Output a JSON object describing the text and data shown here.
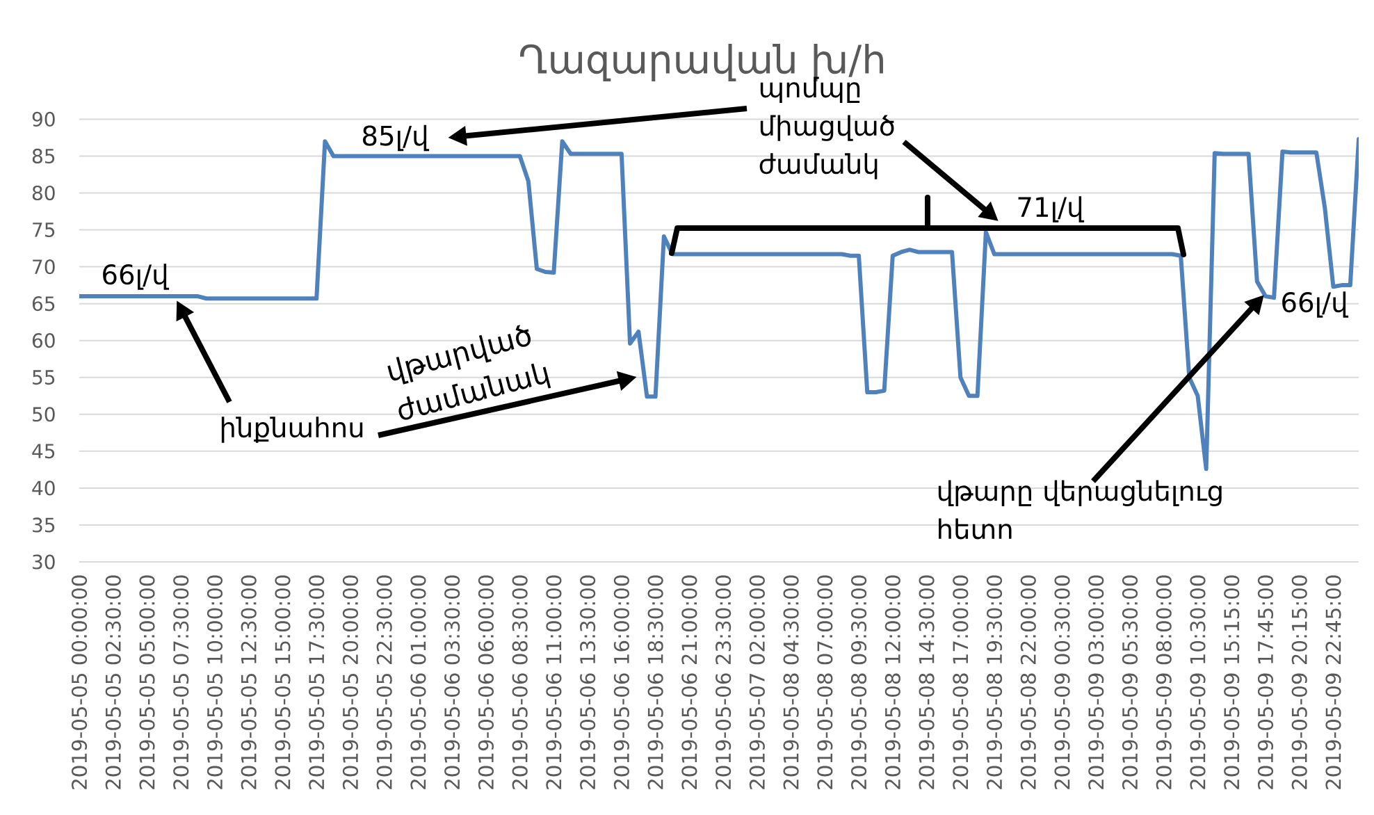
{
  "chart_data": {
    "type": "line",
    "title": "Ղազարավան խ/հ",
    "categories": [
      "2019-05-05 00:00:00",
      null,
      null,
      null,
      "2019-05-05 02:30:00",
      null,
      null,
      null,
      "2019-05-05 05:00:00",
      null,
      null,
      null,
      "2019-05-05 07:30:00",
      null,
      null,
      null,
      "2019-05-05 10:00:00",
      null,
      null,
      null,
      "2019-05-05 12:30:00",
      null,
      null,
      null,
      "2019-05-05 15:00:00",
      null,
      null,
      null,
      "2019-05-05 17:30:00",
      null,
      null,
      null,
      "2019-05-05 20:00:00",
      null,
      null,
      null,
      "2019-05-05 22:30:00",
      null,
      null,
      null,
      "2019-05-06 01:00:00",
      null,
      null,
      null,
      "2019-05-06 03:30:00",
      null,
      null,
      null,
      "2019-05-06 06:00:00",
      null,
      null,
      null,
      "2019-05-06 08:30:00",
      null,
      null,
      null,
      "2019-05-06 11:00:00",
      null,
      null,
      null,
      "2019-05-06 13:30:00",
      null,
      null,
      null,
      "2019-05-06 16:00:00",
      null,
      null,
      null,
      "2019-05-06 18:30:00",
      null,
      null,
      null,
      "2019-05-06 21:00:00",
      null,
      null,
      null,
      "2019-05-06 23:30:00",
      null,
      null,
      null,
      "2019-05-07 02:00:00",
      null,
      null,
      null,
      "2019-05-08 04:30:00",
      null,
      null,
      null,
      "2019-05-08 07:00:00",
      null,
      null,
      null,
      "2019-05-08 09:30:00",
      null,
      null,
      null,
      "2019-05-08 12:00:00",
      null,
      null,
      null,
      "2019-05-08 14:30:00",
      null,
      null,
      null,
      "2019-05-08 17:00:00",
      null,
      null,
      null,
      "2019-05-08 19:30:00",
      null,
      null,
      null,
      "2019-05-08 22:00:00",
      null,
      null,
      null,
      "2019-05-09 00:30:00",
      null,
      null,
      null,
      "2019-05-09 03:00:00",
      null,
      null,
      null,
      "2019-05-09 05:30:00",
      null,
      null,
      null,
      "2019-05-09 08:00:00",
      null,
      null,
      null,
      "2019-05-09 10:30:00",
      null,
      null,
      null,
      "2019-05-09 15:15:00",
      null,
      null,
      null,
      "2019-05-09 17:45:00",
      null,
      null,
      null,
      "2019-05-09 20:15:00",
      null,
      null,
      null,
      "2019-05-09 22:45:00",
      null,
      null,
      null
    ],
    "values": [
      66,
      66,
      66,
      66,
      66,
      66,
      66,
      66,
      66,
      66,
      66,
      66,
      66,
      66,
      66,
      65.7,
      65.7,
      65.7,
      65.7,
      65.7,
      65.7,
      65.7,
      65.7,
      65.7,
      65.7,
      65.7,
      65.7,
      65.7,
      65.7,
      87,
      85,
      85,
      85,
      85,
      85,
      85,
      85,
      85,
      85,
      85,
      85,
      85,
      85,
      85,
      85,
      85,
      85,
      85,
      85,
      85,
      85,
      85,
      85,
      81.6,
      69.7,
      69.3,
      69.2,
      87,
      85.3,
      85.3,
      85.3,
      85.3,
      85.3,
      85.3,
      85.3,
      59.6,
      61.2,
      52.4,
      52.4,
      74.1,
      71.7,
      71.7,
      71.7,
      71.7,
      71.7,
      71.7,
      71.7,
      71.7,
      71.7,
      71.7,
      71.7,
      71.7,
      71.7,
      71.7,
      71.7,
      71.7,
      71.7,
      71.7,
      71.7,
      71.7,
      71.7,
      71.5,
      71.5,
      53,
      53,
      53.2,
      71.5,
      72,
      72.3,
      72,
      72,
      72,
      72,
      72,
      55,
      52.5,
      52.5,
      74.7,
      71.7,
      71.7,
      71.7,
      71.7,
      71.7,
      71.7,
      71.7,
      71.7,
      71.7,
      71.7,
      71.7,
      71.7,
      71.7,
      71.7,
      71.7,
      71.7,
      71.7,
      71.7,
      71.7,
      71.7,
      71.7,
      71.7,
      71.5,
      55,
      52.5,
      42.6,
      85.4,
      85.3,
      85.3,
      85.3,
      85.3,
      68,
      66,
      65.8,
      85.6,
      85.5,
      85.5,
      85.5,
      85.5,
      78,
      67.3,
      67.5,
      67.5,
      87.3
    ],
    "color": "#4f81bd",
    "ylim": [
      30,
      90
    ],
    "yticks": [
      30,
      35,
      40,
      45,
      50,
      55,
      60,
      65,
      70,
      75,
      80,
      85,
      90
    ],
    "grid": "y",
    "annotations": [
      {
        "text": "66լ/վ",
        "y": 66
      },
      {
        "text": "85լ/վ",
        "y": 85
      },
      {
        "text": "71լ/վ",
        "y": 71
      },
      "66լ/վ",
      "պոմպը միացված ժամանկ",
      "ինքնահոս",
      "վթարված ժամանակ",
      "վթարը վերացնելուց հետո"
    ]
  }
}
